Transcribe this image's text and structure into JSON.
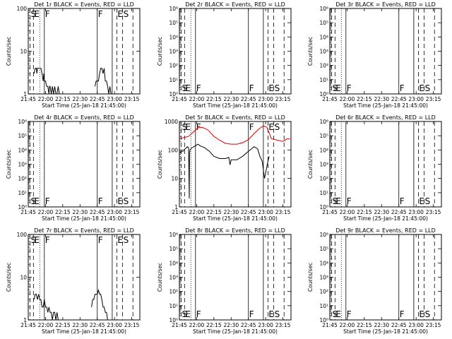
{
  "figure": {
    "background": "#ffffff",
    "axis_color": "#000000",
    "series_colors": {
      "Events": "#000000",
      "LLD": "#dd0000"
    }
  },
  "shared": {
    "xlabel": "Start Time (25-Jan-18 21:45:00)",
    "x_tick_labels": [
      "21:45",
      "22:00",
      "22:15",
      "22:30",
      "22:45",
      "23:00",
      "23:15"
    ],
    "x_tick_values_min": [
      0,
      15,
      30,
      45,
      60,
      75,
      90
    ],
    "xlim_min": [
      0,
      97
    ]
  },
  "chart_data": [
    {
      "type": "line",
      "title": "Det 1r BLACK = Events, RED = LLD",
      "ylabel": "Counts/sec",
      "yscale": "log",
      "ylim": [
        1,
        100
      ],
      "y_tick_labels": [
        "1",
        "10",
        "100"
      ],
      "y_tick_values": [
        1,
        10,
        100
      ],
      "markers": [
        {
          "label": "S",
          "x": 1.5,
          "style": "dashed"
        },
        {
          "label": "E",
          "x": 4.5,
          "style": "dashed"
        },
        {
          "label": "",
          "x": 10,
          "style": "dotted"
        },
        {
          "label": "F",
          "x": 14,
          "style": "solid"
        },
        {
          "label": "F",
          "x": 60,
          "style": "solid"
        },
        {
          "label": "",
          "x": 73,
          "style": "solid"
        },
        {
          "label": "E",
          "x": 77,
          "style": "dashed"
        },
        {
          "label": "S",
          "x": 82,
          "style": "dashed"
        },
        {
          "label": "",
          "x": 91,
          "style": "dashed"
        }
      ],
      "series": [
        {
          "values_x": [
            5,
            6,
            7,
            7.5,
            8,
            9,
            10,
            11,
            12,
            13,
            13.5,
            14,
            15,
            16,
            17,
            18,
            18.5,
            19,
            20,
            21,
            22,
            23,
            24,
            25,
            26,
            27
          ],
          "values_y": [
            3,
            4,
            4,
            3,
            4,
            4,
            4,
            4,
            3,
            2,
            3,
            2,
            2,
            1.5,
            1.5,
            1,
            1.5,
            1.5,
            1,
            1.5,
            1,
            1.5,
            1,
            1,
            1.5,
            1
          ]
        },
        {
          "values_x": [
            58,
            59,
            60,
            61,
            62,
            63,
            64,
            65,
            66,
            67,
            68,
            69,
            70,
            71,
            72
          ],
          "values_y": [
            1.5,
            2,
            2,
            2,
            3,
            4,
            4,
            3,
            4,
            2,
            2,
            1.5,
            1,
            1.5,
            1
          ]
        }
      ]
    },
    {
      "type": "line",
      "title": "Det 2r BLACK = Events, RED = LLD",
      "ylabel": "Counts/sec",
      "yscale": "log",
      "ylim": [
        1,
        1000000
      ],
      "y_tick_labels": [
        "10⁰",
        "10¹",
        "10²",
        "10³",
        "10⁴",
        "10⁵",
        "10⁶"
      ],
      "y_tick_values": [
        1,
        10,
        100,
        1000,
        10000,
        100000,
        1000000
      ],
      "markers": [
        {
          "label": "S",
          "x": 1.5,
          "style": "dashed"
        },
        {
          "label": "E",
          "x": 4.5,
          "style": "dashed"
        },
        {
          "label": "",
          "x": 10,
          "style": "dotted"
        },
        {
          "label": "F",
          "x": 14,
          "style": "solid"
        },
        {
          "label": "F",
          "x": 60,
          "style": "solid"
        },
        {
          "label": "",
          "x": 73,
          "style": "solid"
        },
        {
          "label": "E",
          "x": 77,
          "style": "dashed"
        },
        {
          "label": "S",
          "x": 82,
          "style": "dashed"
        },
        {
          "label": "",
          "x": 91,
          "style": "dashed"
        }
      ],
      "series": []
    },
    {
      "type": "line",
      "title": "Det 3r BLACK = Events, RED = LLD",
      "ylabel": "Counts/sec",
      "yscale": "log",
      "ylim": [
        1,
        1000000
      ],
      "y_tick_labels": [
        "10⁰",
        "10¹",
        "10²",
        "10³",
        "10⁴",
        "10⁵",
        "10⁶"
      ],
      "y_tick_values": [
        1,
        10,
        100,
        1000,
        10000,
        100000,
        1000000
      ],
      "markers": [
        {
          "label": "S",
          "x": 1.5,
          "style": "dashed"
        },
        {
          "label": "E",
          "x": 4.5,
          "style": "dashed"
        },
        {
          "label": "",
          "x": 10,
          "style": "dotted"
        },
        {
          "label": "F",
          "x": 14,
          "style": "solid"
        },
        {
          "label": "F",
          "x": 60,
          "style": "solid"
        },
        {
          "label": "",
          "x": 73,
          "style": "solid"
        },
        {
          "label": "E",
          "x": 77,
          "style": "dashed"
        },
        {
          "label": "S",
          "x": 82,
          "style": "dashed"
        },
        {
          "label": "",
          "x": 91,
          "style": "dashed"
        }
      ],
      "series": []
    },
    {
      "type": "line",
      "title": "Det 4r BLACK = Events, RED = LLD",
      "ylabel": "Counts/sec",
      "yscale": "log",
      "ylim": [
        1,
        1000000
      ],
      "y_tick_labels": [
        "10⁰",
        "10¹",
        "10²",
        "10³",
        "10⁴",
        "10⁵",
        "10⁶"
      ],
      "y_tick_values": [
        1,
        10,
        100,
        1000,
        10000,
        100000,
        1000000
      ],
      "markers": [
        {
          "label": "S",
          "x": 1.5,
          "style": "dashed"
        },
        {
          "label": "E",
          "x": 4.5,
          "style": "dashed"
        },
        {
          "label": "",
          "x": 10,
          "style": "dotted"
        },
        {
          "label": "F",
          "x": 14,
          "style": "solid"
        },
        {
          "label": "F",
          "x": 60,
          "style": "solid"
        },
        {
          "label": "",
          "x": 73,
          "style": "solid"
        },
        {
          "label": "E",
          "x": 77,
          "style": "dashed"
        },
        {
          "label": "S",
          "x": 82,
          "style": "dashed"
        },
        {
          "label": "",
          "x": 91,
          "style": "dashed"
        }
      ],
      "series": []
    },
    {
      "type": "line",
      "title": "Det 5r BLACK = Events, RED = LLD",
      "ylabel": "Counts/sec",
      "yscale": "log",
      "ylim": [
        1,
        1000
      ],
      "y_tick_labels": [
        "1",
        "10",
        "100",
        "1000"
      ],
      "y_tick_values": [
        1,
        10,
        100,
        1000
      ],
      "markers": [
        {
          "label": "S",
          "x": 1.5,
          "style": "dashed"
        },
        {
          "label": "E",
          "x": 4.5,
          "style": "dashed"
        },
        {
          "label": "",
          "x": 10,
          "style": "dotted"
        },
        {
          "label": "F",
          "x": 14,
          "style": "solid"
        },
        {
          "label": "F",
          "x": 60,
          "style": "solid"
        },
        {
          "label": "",
          "x": 73,
          "style": "solid"
        },
        {
          "label": "E",
          "x": 77,
          "style": "dashed"
        },
        {
          "label": "S",
          "x": 82,
          "style": "dashed"
        },
        {
          "label": "",
          "x": 91,
          "style": "dashed"
        }
      ],
      "series": [
        {
          "name": "LLD",
          "color": "#dd0000",
          "values_x": [
            0,
            4,
            8,
            12,
            16,
            20,
            25,
            30,
            35,
            40,
            45,
            50,
            55,
            60,
            65,
            70,
            73,
            76,
            80,
            85,
            90,
            94,
            96
          ],
          "values_y": [
            250,
            270,
            300,
            420,
            600,
            620,
            500,
            300,
            220,
            170,
            160,
            160,
            180,
            230,
            380,
            580,
            700,
            630,
            250,
            220,
            200,
            250,
            240
          ]
        },
        {
          "name": "Events",
          "color": "#000000",
          "values_x": [
            0,
            3,
            5,
            7,
            8,
            8.6,
            8.8,
            9.2,
            11,
            14,
            16,
            18,
            22,
            26,
            30,
            35,
            40,
            43,
            44,
            45,
            50,
            55,
            60,
            65,
            68,
            69,
            70,
            72,
            74,
            77,
            78
          ],
          "values_y": [
            80,
            90,
            110,
            130,
            120,
            2,
            70,
            100,
            120,
            140,
            160,
            140,
            120,
            90,
            60,
            50,
            50,
            55,
            30,
            45,
            45,
            60,
            90,
            130,
            110,
            80,
            60,
            40,
            10,
            40,
            60
          ]
        }
      ]
    },
    {
      "type": "line",
      "title": "Det 6r BLACK = Events, RED = LLD",
      "ylabel": "Counts/sec",
      "yscale": "log",
      "ylim": [
        1,
        1000000
      ],
      "y_tick_labels": [
        "10⁰",
        "10¹",
        "10²",
        "10³",
        "10⁴",
        "10⁵",
        "10⁶"
      ],
      "y_tick_values": [
        1,
        10,
        100,
        1000,
        10000,
        100000,
        1000000
      ],
      "markers": [
        {
          "label": "S",
          "x": 1.5,
          "style": "dashed"
        },
        {
          "label": "E",
          "x": 4.5,
          "style": "dashed"
        },
        {
          "label": "",
          "x": 10,
          "style": "dotted"
        },
        {
          "label": "F",
          "x": 14,
          "style": "solid"
        },
        {
          "label": "F",
          "x": 60,
          "style": "solid"
        },
        {
          "label": "",
          "x": 73,
          "style": "solid"
        },
        {
          "label": "E",
          "x": 77,
          "style": "dashed"
        },
        {
          "label": "S",
          "x": 82,
          "style": "dashed"
        },
        {
          "label": "",
          "x": 91,
          "style": "dashed"
        }
      ],
      "series": []
    },
    {
      "type": "line",
      "title": "Det 7r BLACK = Events, RED = LLD",
      "ylabel": "Counts/sec",
      "yscale": "log",
      "ylim": [
        1,
        100
      ],
      "y_tick_labels": [
        "1",
        "10",
        "100"
      ],
      "y_tick_values": [
        1,
        10,
        100
      ],
      "markers": [
        {
          "label": "S",
          "x": 1.5,
          "style": "dashed"
        },
        {
          "label": "E",
          "x": 4.5,
          "style": "dashed"
        },
        {
          "label": "",
          "x": 10,
          "style": "dotted"
        },
        {
          "label": "F",
          "x": 14,
          "style": "solid"
        },
        {
          "label": "F",
          "x": 60,
          "style": "solid"
        },
        {
          "label": "",
          "x": 73,
          "style": "solid"
        },
        {
          "label": "E",
          "x": 77,
          "style": "dashed"
        },
        {
          "label": "S",
          "x": 82,
          "style": "dashed"
        },
        {
          "label": "",
          "x": 91,
          "style": "dashed"
        }
      ],
      "series": [
        {
          "values_x": [
            5,
            6,
            7,
            8,
            9,
            10,
            11,
            12,
            13,
            14,
            15,
            16,
            17,
            18,
            19,
            20,
            21,
            22,
            23,
            24,
            25,
            26,
            27
          ],
          "values_y": [
            3,
            4,
            4,
            3,
            4,
            3,
            3,
            2,
            2,
            3,
            2,
            2,
            1.5,
            2,
            1.5,
            1.5,
            1,
            1.5,
            1.5,
            1,
            1.5,
            1,
            1
          ]
        },
        {
          "values_x": [
            55,
            56,
            57,
            58,
            59,
            60,
            61,
            62,
            63,
            64,
            65,
            66,
            67,
            68,
            69,
            70
          ],
          "values_y": [
            2,
            3,
            3,
            4,
            4,
            4,
            5,
            4,
            4,
            3,
            2,
            2,
            1.5,
            1.5,
            1,
            1
          ]
        }
      ]
    },
    {
      "type": "line",
      "title": "Det 8r BLACK = Events, RED = LLD",
      "ylabel": "Counts/sec",
      "yscale": "log",
      "ylim": [
        1,
        1000000
      ],
      "y_tick_labels": [
        "10⁰",
        "10¹",
        "10²",
        "10³",
        "10⁴",
        "10⁵",
        "10⁶"
      ],
      "y_tick_values": [
        1,
        10,
        100,
        1000,
        10000,
        100000,
        1000000
      ],
      "markers": [
        {
          "label": "S",
          "x": 1.5,
          "style": "dashed"
        },
        {
          "label": "E",
          "x": 4.5,
          "style": "dashed"
        },
        {
          "label": "",
          "x": 10,
          "style": "dotted"
        },
        {
          "label": "F",
          "x": 14,
          "style": "solid"
        },
        {
          "label": "F",
          "x": 60,
          "style": "solid"
        },
        {
          "label": "",
          "x": 73,
          "style": "solid"
        },
        {
          "label": "E",
          "x": 77,
          "style": "dashed"
        },
        {
          "label": "S",
          "x": 82,
          "style": "dashed"
        },
        {
          "label": "",
          "x": 91,
          "style": "dashed"
        }
      ],
      "series": []
    },
    {
      "type": "line",
      "title": "Det 9r BLACK = Events, RED = LLD",
      "ylabel": "Counts/sec",
      "yscale": "log",
      "ylim": [
        1,
        1000000
      ],
      "y_tick_labels": [
        "10⁰",
        "10¹",
        "10²",
        "10³",
        "10⁴",
        "10⁵",
        "10⁶"
      ],
      "y_tick_values": [
        1,
        10,
        100,
        1000,
        10000,
        100000,
        1000000
      ],
      "markers": [
        {
          "label": "S",
          "x": 1.5,
          "style": "dashed"
        },
        {
          "label": "E",
          "x": 4.5,
          "style": "dashed"
        },
        {
          "label": "",
          "x": 10,
          "style": "dotted"
        },
        {
          "label": "F",
          "x": 14,
          "style": "solid"
        },
        {
          "label": "F",
          "x": 60,
          "style": "solid"
        },
        {
          "label": "",
          "x": 73,
          "style": "solid"
        },
        {
          "label": "E",
          "x": 77,
          "style": "dashed"
        },
        {
          "label": "S",
          "x": 82,
          "style": "dashed"
        },
        {
          "label": "",
          "x": 91,
          "style": "dashed"
        }
      ],
      "series": []
    }
  ]
}
